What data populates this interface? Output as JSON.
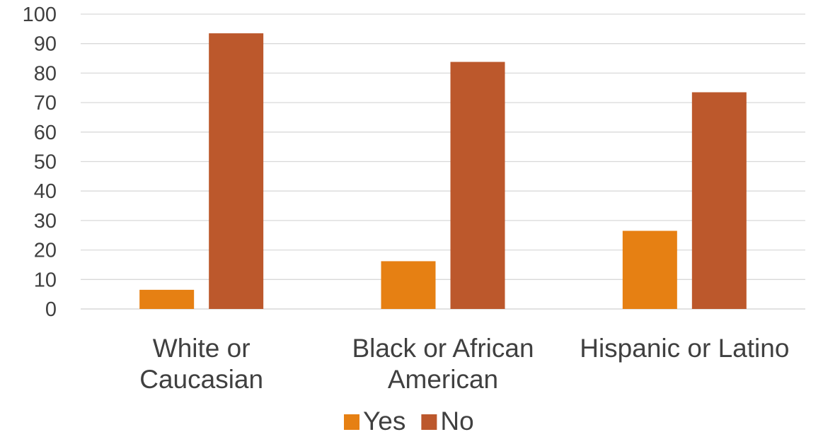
{
  "chart_data": {
    "type": "bar",
    "categories": [
      [
        "White or",
        "Caucasian"
      ],
      [
        "Black or African",
        "American"
      ],
      [
        "Hispanic or Latino"
      ]
    ],
    "series": [
      {
        "name": "Yes",
        "color": "#e68013",
        "values": [
          6.5,
          16.2,
          26.5
        ]
      },
      {
        "name": "No",
        "color": "#bc582c",
        "values": [
          93.5,
          83.8,
          73.5
        ]
      }
    ],
    "ylim": [
      0,
      100
    ],
    "yticks": [
      0,
      10,
      20,
      30,
      40,
      50,
      60,
      70,
      80,
      90,
      100
    ],
    "grid": true,
    "legend_position": "bottom",
    "title": "",
    "xlabel": "",
    "ylabel": ""
  }
}
